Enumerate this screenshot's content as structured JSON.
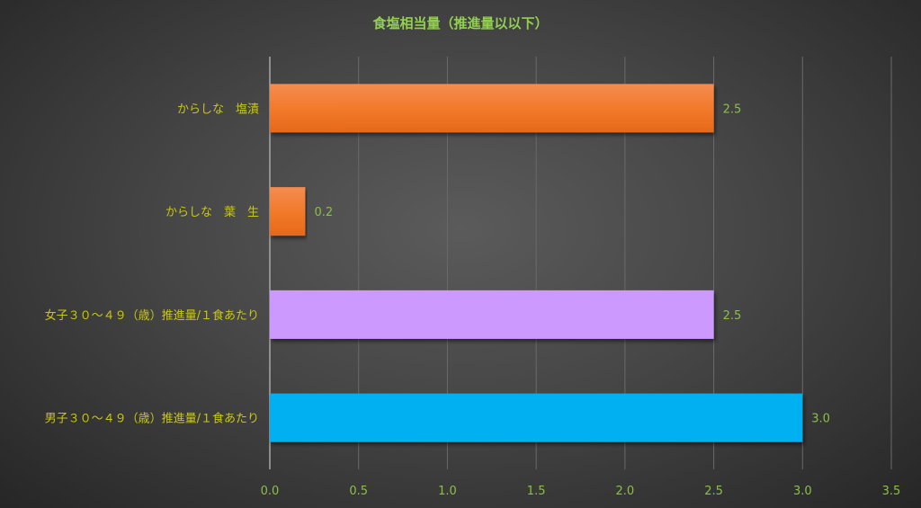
{
  "chart_data": {
    "type": "bar",
    "orientation": "horizontal",
    "title": "食塩相当量（推進量以以下）",
    "categories": [
      "からしな　塩漬",
      "からしな　葉　生",
      "女子３０～４９（歳）推進量/１食あたり",
      "男子３０～４９（歳）推進量/１食あたり"
    ],
    "values": [
      2.5,
      0.2,
      2.5,
      3.0
    ],
    "value_labels": [
      "2.5",
      "0.2",
      "2.5",
      "3.0"
    ],
    "bar_colors": [
      "#f07a2a",
      "#f07a2a",
      "#cc99ff",
      "#00b0f0"
    ],
    "xlim": [
      0,
      3.5
    ],
    "xticks": [
      "0.0",
      "0.5",
      "1.0",
      "1.5",
      "2.0",
      "2.5",
      "3.0",
      "3.5"
    ],
    "grid": true,
    "legend": "none",
    "colors": {
      "title": "#92d050",
      "category_text": "#c8c810",
      "value_text": "#8cbf4a",
      "grid": "#6a6a6a"
    }
  }
}
